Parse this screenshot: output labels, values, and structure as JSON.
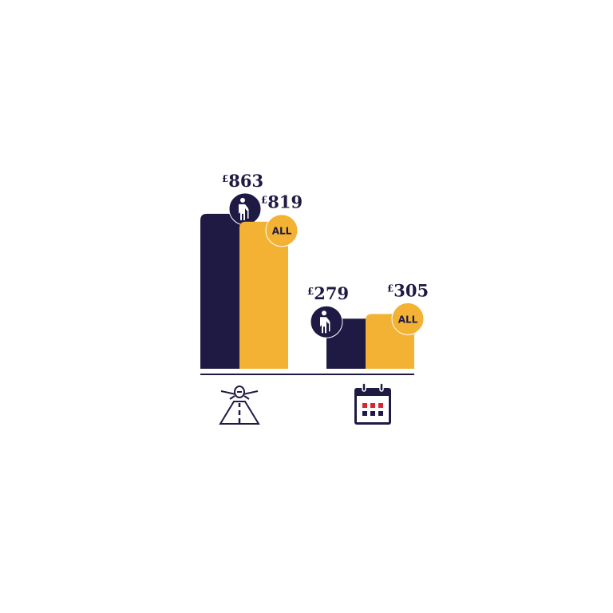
{
  "chart_data": {
    "type": "bar",
    "categories": [
      "airport-runway-icon",
      "calendar-icon"
    ],
    "series": [
      {
        "badge": "elderly-person-icon",
        "color": "#1f1a44",
        "values": [
          863,
          279
        ],
        "labels": [
          "£863",
          "£279"
        ]
      },
      {
        "badge": "ALL",
        "color": "#f3b234",
        "values": [
          819,
          305
        ],
        "labels": [
          "£819",
          "£305"
        ]
      }
    ],
    "currency": "£",
    "grid": false,
    "axis_color": "#1f1a44",
    "icon_accent": "#d8262e"
  }
}
